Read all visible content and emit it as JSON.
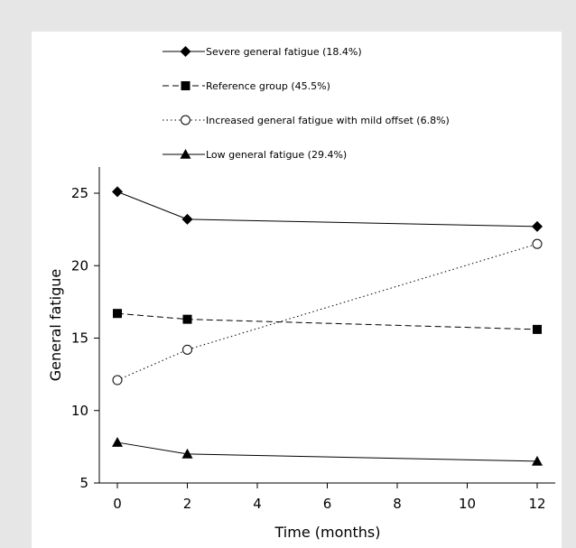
{
  "chart_data": {
    "type": "line",
    "title": "",
    "xlabel": "Time (months)",
    "ylabel": "General fatigue",
    "xlim": [
      -0.5,
      12.5
    ],
    "ylim": [
      5,
      27
    ],
    "xticks": [
      0,
      2,
      4,
      6,
      8,
      10,
      12
    ],
    "yticks": [
      5,
      10,
      15,
      20,
      25
    ],
    "grid": false,
    "legend_position": "top",
    "series": [
      {
        "name": "Severe general fatigue (18.4%)",
        "line_style": "solid",
        "marker": "filled-diamond",
        "x": [
          0,
          2,
          12
        ],
        "y": [
          25.1,
          23.2,
          22.7
        ]
      },
      {
        "name": "Reference group (45.5%)",
        "line_style": "dashed",
        "marker": "filled-square",
        "x": [
          0,
          2,
          12
        ],
        "y": [
          16.7,
          16.3,
          15.6
        ]
      },
      {
        "name": "Increased general fatigue with mild offset (6.8%)",
        "line_style": "dotted",
        "marker": "open-circle",
        "x": [
          0,
          2,
          12
        ],
        "y": [
          12.1,
          14.2,
          21.5
        ]
      },
      {
        "name": "Low general fatigue (29.4%)",
        "line_style": "solid",
        "marker": "filled-triangle",
        "x": [
          0,
          2,
          12
        ],
        "y": [
          7.8,
          7.0,
          6.5
        ]
      }
    ]
  }
}
